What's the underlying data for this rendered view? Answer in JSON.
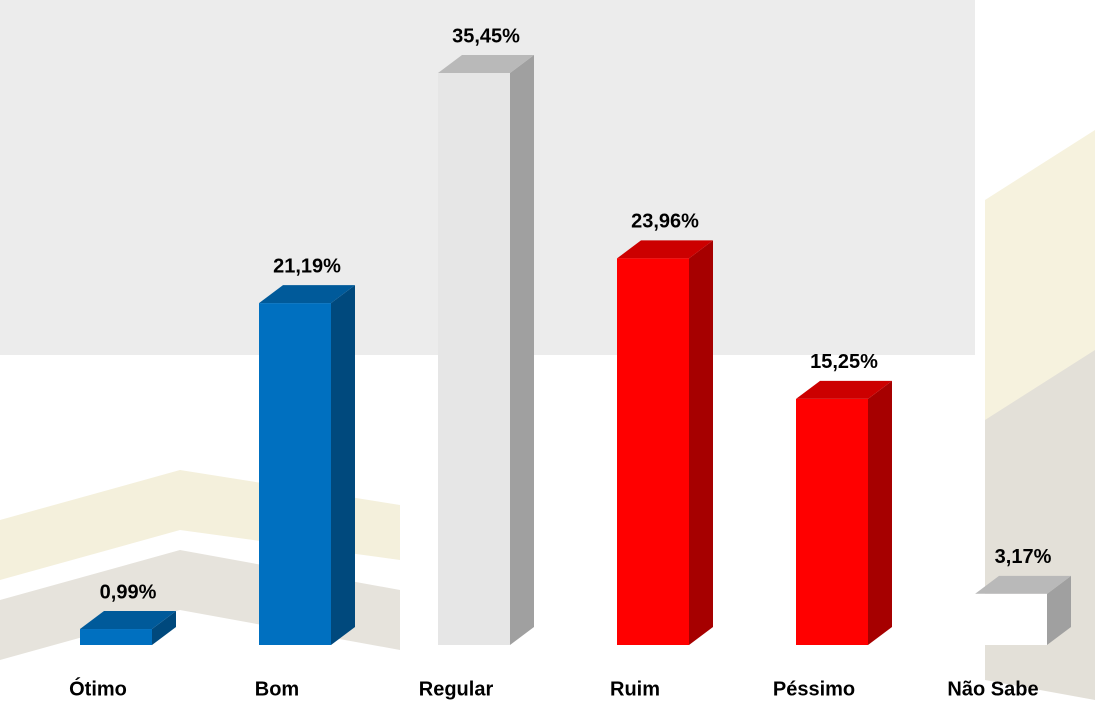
{
  "chart_data": {
    "type": "bar3d",
    "categories": [
      "Ótimo",
      "Bom",
      "Regular",
      "Ruim",
      "Péssimo",
      "Não Sabe"
    ],
    "values": [
      0.99,
      21.19,
      35.45,
      23.96,
      15.25,
      3.17
    ],
    "value_labels": [
      "0,99%",
      "21,19%",
      "35,45%",
      "23,96%",
      "15,25%",
      "3,17%"
    ],
    "colors": [
      "#0070c0",
      "#0070c0",
      "#e6e6e6",
      "#ff0000",
      "#ff0000",
      "#ffffff"
    ]
  }
}
